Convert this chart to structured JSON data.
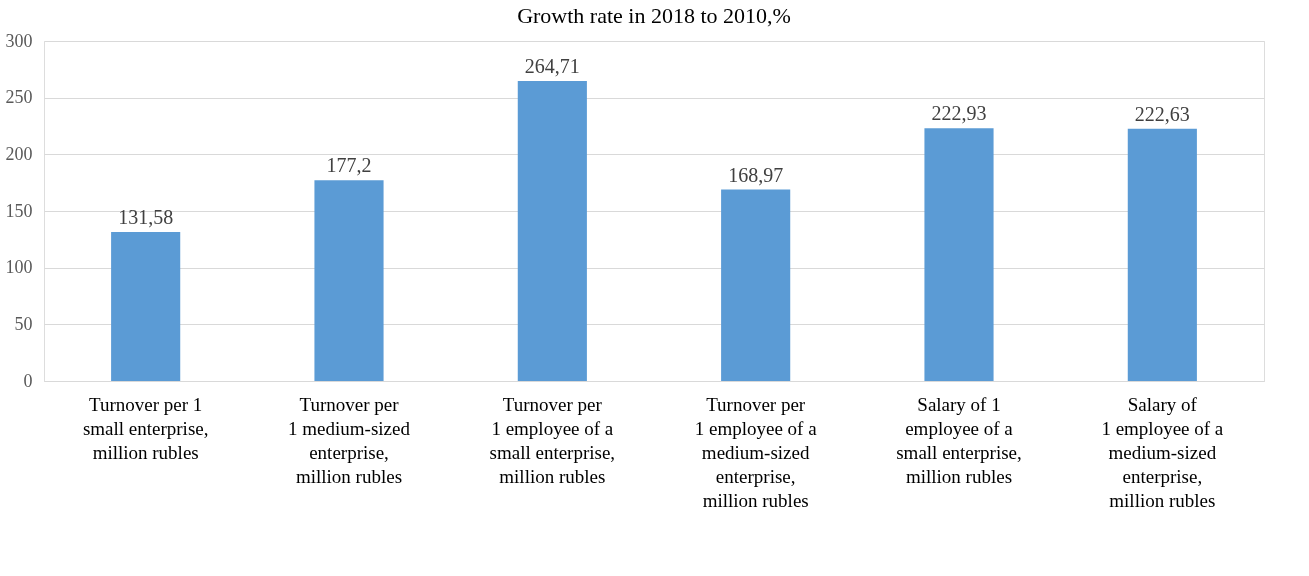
{
  "chart_data": {
    "type": "bar",
    "title": "Growth rate in 2018 to 2010,%",
    "categories": [
      "Turnover per 1\nsmall enterprise,\nmillion rubles",
      "Turnover per\n1 medium-sized\nenterprise,\n million rubles",
      "Turnover per\n1 employee of a\nsmall enterprise,\nmillion rubles",
      "Turnover per\n1 employee of a\nmedium-sized\nenterprise,\nmillion rubles",
      "Salary of 1\nemployee of a\nsmall enterprise,\nmillion rubles",
      "Salary of\n1 employee of a\nmedium-sized\nenterprise,\nmillion rubles"
    ],
    "values": [
      131.58,
      177.2,
      264.71,
      168.97,
      222.93,
      222.63
    ],
    "value_labels": [
      "131,58",
      "177,2",
      "264,71",
      "168,97",
      "222,93",
      "222,63"
    ],
    "color": "#5b9bd5",
    "ylim": [
      0,
      300
    ],
    "yticks": [
      0,
      50,
      100,
      150,
      200,
      250,
      300
    ],
    "grid": "y"
  }
}
